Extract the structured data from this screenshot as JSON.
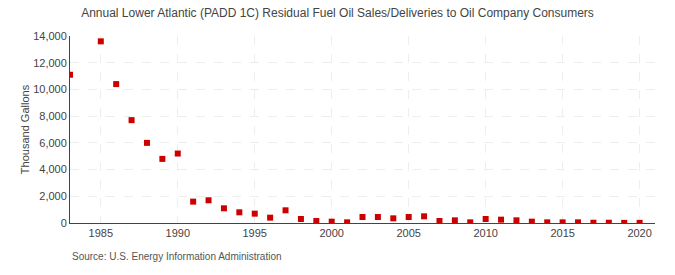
{
  "chart_data": {
    "type": "scatter",
    "title": "Annual Lower Atlantic (PADD 1C) Residual Fuel Oil Sales/Deliveries to Oil Company Consumers",
    "ylabel": "Thousand Gallons",
    "annotations": [
      "Source: U.S. Energy Information Administration"
    ],
    "x": [
      1983,
      1985,
      1986,
      1987,
      1988,
      1989,
      1990,
      1991,
      1992,
      1993,
      1994,
      1995,
      1996,
      1997,
      1998,
      1999,
      2000,
      2001,
      2002,
      2003,
      2004,
      2005,
      2006,
      2007,
      2008,
      2009,
      2010,
      2011,
      2012,
      2013,
      2014,
      2015,
      2016,
      2017,
      2018,
      2019,
      2020
    ],
    "values": [
      11100,
      13600,
      10400,
      7700,
      6000,
      4800,
      5200,
      1600,
      1700,
      1100,
      800,
      700,
      400,
      950,
      300,
      150,
      100,
      50,
      450,
      450,
      350,
      450,
      500,
      150,
      200,
      50,
      300,
      250,
      200,
      100,
      50,
      50,
      50,
      20,
      20,
      10,
      10
    ],
    "color": "#cc0000",
    "marker": "square",
    "xlim": [
      1983,
      2021
    ],
    "xticks": [
      1985,
      1990,
      1995,
      2000,
      2005,
      2010,
      2015,
      2020
    ],
    "ylim": [
      0,
      14000
    ],
    "yticks": [
      0,
      {
        "value": 2000,
        "label": "2,000"
      },
      {
        "value": 4000,
        "label": "4,000"
      },
      {
        "value": 6000,
        "label": "6,000"
      },
      {
        "value": 8000,
        "label": "8,000"
      },
      {
        "value": 10000,
        "label": "10,000"
      },
      {
        "value": 12000,
        "label": "12,000"
      },
      {
        "value": 14000,
        "label": "14,000"
      }
    ],
    "grid": true
  }
}
